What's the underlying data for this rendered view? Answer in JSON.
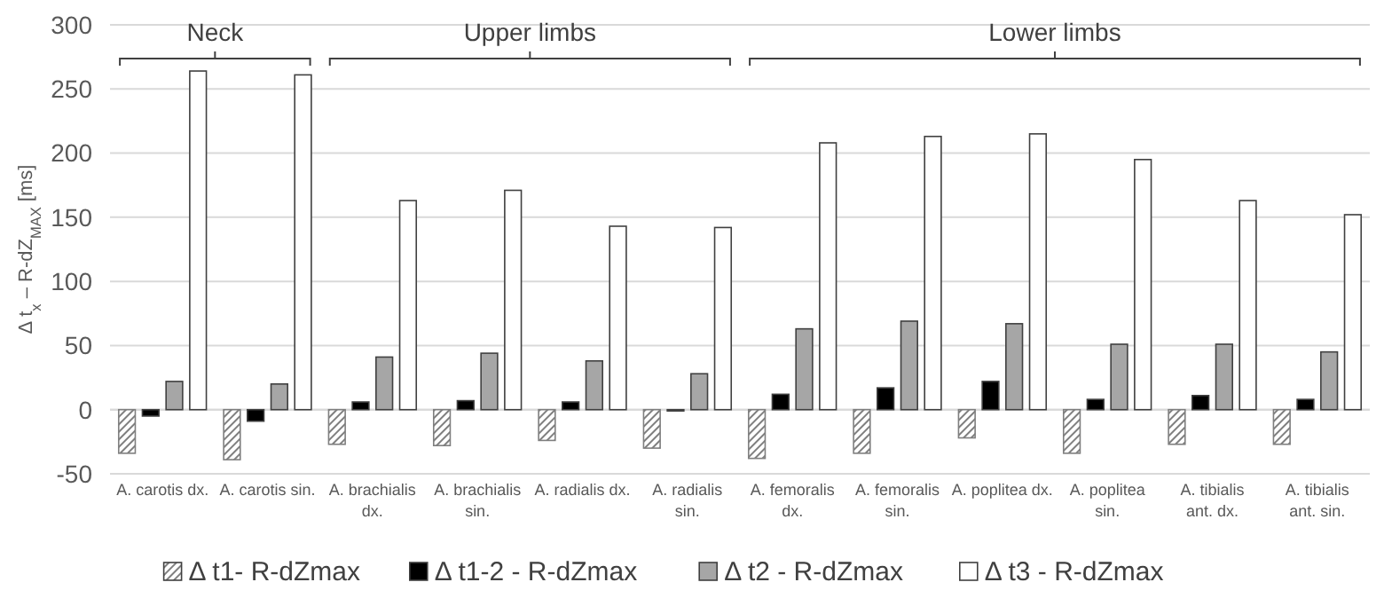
{
  "chart_data": {
    "type": "bar",
    "ylabel": "Δ t$_{x}$ – R-dZ$_{MAX}$ [ms]",
    "categories": [
      "A. carotis dx.",
      "A. carotis sin.",
      "A. brachialis dx.",
      "A. brachialis sin.",
      "A. radialis dx.",
      "A. radialis sin.",
      "A. femoralis dx.",
      "A. femoralis sin.",
      "A. poplitea dx.",
      "A. poplitea sin.",
      "A. tibialis ant. dx.",
      "A. tibialis ant. sin."
    ],
    "series": [
      {
        "name": "Δ t1- R-dZmax",
        "color": "#7f7f7f",
        "values": [
          -34,
          -39,
          -27,
          -28,
          -24,
          -30,
          -38,
          -34,
          -22,
          -34,
          -27,
          -27
        ]
      },
      {
        "name": "Δ t1-2 - R-dZmax",
        "color": "#000000",
        "values": [
          -5,
          -9,
          6,
          7,
          6,
          -1,
          12,
          17,
          22,
          8,
          11,
          8
        ]
      },
      {
        "name": "Δ t2 - R-dZmax",
        "color": "#a6a6a6",
        "values": [
          22,
          20,
          41,
          44,
          38,
          28,
          63,
          69,
          67,
          51,
          51,
          45
        ]
      },
      {
        "name": "Δ t3 - R-dZmax",
        "color": "#ffffff",
        "values": [
          264,
          261,
          163,
          171,
          143,
          142,
          208,
          213,
          215,
          195,
          163,
          152
        ]
      }
    ],
    "ylim": [
      -50,
      300
    ],
    "yticks": [
      -50,
      0,
      50,
      100,
      150,
      200,
      250,
      300
    ],
    "grid": "y",
    "legend": "bottom",
    "annotations": [
      "Neck",
      "Upper limbs",
      "Lower limbs"
    ]
  }
}
